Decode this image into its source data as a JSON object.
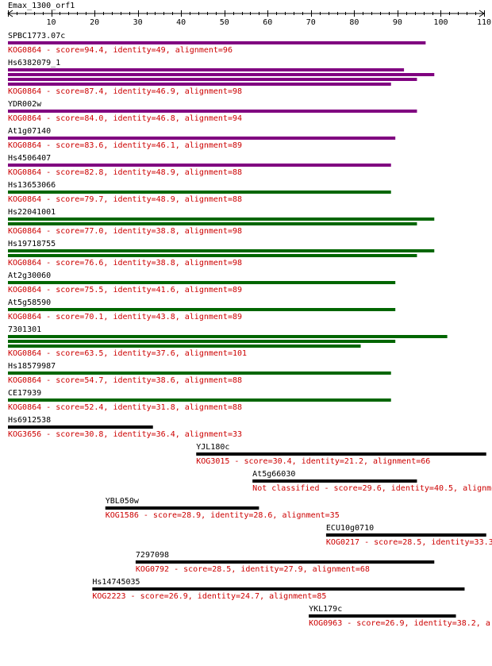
{
  "chart_data": {
    "type": "bar",
    "title": "Emax_1300_orf1",
    "xlim": [
      0,
      110
    ],
    "ticks": [
      10,
      20,
      30,
      40,
      50,
      60,
      70,
      80,
      90,
      100,
      110
    ],
    "colors": {
      "purple": "#800080",
      "green": "#006600",
      "black": "#000000",
      "label": "#000000",
      "description": "#cc0000"
    },
    "hits": [
      {
        "name": "SPBC1773.07c",
        "description": "KOG0864 - score=94.4, identity=49, alignment=96",
        "color": "purple",
        "bars": [
          [
            0,
            96.5
          ]
        ]
      },
      {
        "name": "Hs6382079_1",
        "description": "KOG0864 - score=87.4, identity=46.9, alignment=98",
        "color": "purple",
        "bars": [
          [
            0,
            91.5
          ],
          [
            0,
            98.5
          ],
          [
            0,
            94.5
          ],
          [
            0,
            88.5
          ]
        ]
      },
      {
        "name": "YDR002w",
        "description": "KOG0864 - score=84.0, identity=46.8, alignment=94",
        "color": "purple",
        "bars": [
          [
            0,
            94.5
          ]
        ]
      },
      {
        "name": "At1g07140",
        "description": "KOG0864 - score=83.6, identity=46.1, alignment=89",
        "color": "purple",
        "bars": [
          [
            0,
            89.5
          ]
        ]
      },
      {
        "name": "Hs4506407",
        "description": "KOG0864 - score=82.8, identity=48.9, alignment=88",
        "color": "purple",
        "bars": [
          [
            0,
            88.5
          ]
        ]
      },
      {
        "name": "Hs13653066",
        "description": "KOG0864 - score=79.7, identity=48.9, alignment=88",
        "color": "green",
        "bars": [
          [
            0,
            88.5
          ]
        ]
      },
      {
        "name": "Hs22041001",
        "description": "KOG0864 - score=77.0, identity=38.8, alignment=98",
        "color": "green",
        "bars": [
          [
            0,
            98.5
          ],
          [
            0,
            94.5
          ]
        ]
      },
      {
        "name": "Hs19718755",
        "description": "KOG0864 - score=76.6, identity=38.8, alignment=98",
        "color": "green",
        "bars": [
          [
            0,
            98.5
          ],
          [
            0,
            94.5
          ]
        ]
      },
      {
        "name": "At2g30060",
        "description": "KOG0864 - score=75.5, identity=41.6, alignment=89",
        "color": "green",
        "bars": [
          [
            0,
            89.5
          ]
        ]
      },
      {
        "name": "At5g58590",
        "description": "KOG0864 - score=70.1, identity=43.8, alignment=89",
        "color": "green",
        "bars": [
          [
            0,
            89.5
          ]
        ]
      },
      {
        "name": "7301301",
        "description": "KOG0864 - score=63.5, identity=37.6, alignment=101",
        "color": "green",
        "bars": [
          [
            0,
            101.5
          ],
          [
            0,
            89.5
          ],
          [
            0,
            81.5
          ]
        ]
      },
      {
        "name": "Hs18579987",
        "description": "KOG0864 - score=54.7, identity=38.6, alignment=88",
        "color": "green",
        "bars": [
          [
            0,
            88.5
          ]
        ]
      },
      {
        "name": "CE17939",
        "description": "KOG0864 - score=52.4, identity=31.8, alignment=88",
        "color": "green",
        "bars": [
          [
            0,
            88.5
          ]
        ]
      },
      {
        "name": "Hs6912538",
        "description": "KOG3656 - score=30.8, identity=36.4, alignment=33",
        "color": "black",
        "bars": [
          [
            0,
            33.5
          ]
        ]
      },
      {
        "name": "YJL180c",
        "description": "KOG3015 - score=30.4, identity=21.2, alignment=66",
        "color": "black",
        "bars": [
          [
            43.5,
            110.5
          ]
        ]
      },
      {
        "name": "At5g66030",
        "description": "Not classified - score=29.6, identity=40.5, alignment=",
        "color": "black",
        "bars": [
          [
            56.5,
            94.5
          ]
        ]
      },
      {
        "name": "YBL050w",
        "description": "KOG1586 - score=28.9, identity=28.6, alignment=35",
        "color": "black",
        "bars": [
          [
            22.5,
            58.0
          ]
        ]
      },
      {
        "name": "ECU10g0710",
        "description": "KOG0217 - score=28.5, identity=33.3",
        "color": "black",
        "bars": [
          [
            73.5,
            110.5
          ]
        ]
      },
      {
        "name": "7297098",
        "description": "KOG0792 - score=28.5, identity=27.9, alignment=68",
        "color": "black",
        "bars": [
          [
            29.5,
            98.5
          ]
        ]
      },
      {
        "name": "Hs14745035",
        "description": "KOG2223 - score=26.9, identity=24.7, alignment=85",
        "color": "black",
        "bars": [
          [
            19.5,
            105.5
          ]
        ]
      },
      {
        "name": "YKL179c",
        "description": "KOG0963 - score=26.9, identity=38.2, a",
        "color": "black",
        "bars": [
          [
            69.5,
            103.5
          ]
        ]
      }
    ]
  }
}
